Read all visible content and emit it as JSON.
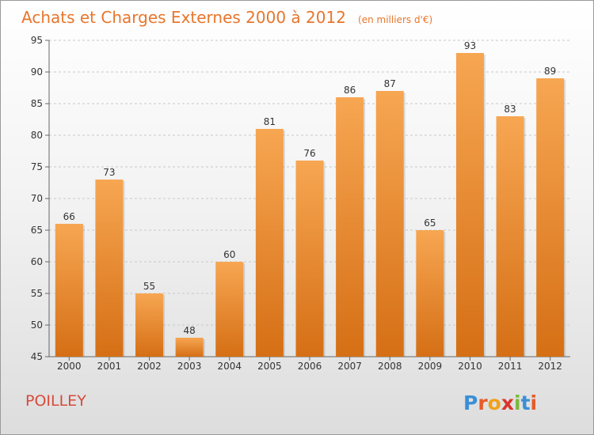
{
  "chart_data": {
    "type": "bar",
    "title": "Achats et Charges Externes 2000 à 2012",
    "subtitle": "(en milliers d'€)",
    "categories": [
      "2000",
      "2001",
      "2002",
      "2003",
      "2004",
      "2005",
      "2006",
      "2007",
      "2008",
      "2009",
      "2010",
      "2011",
      "2012"
    ],
    "values": [
      66,
      73,
      55,
      48,
      60,
      81,
      76,
      86,
      87,
      65,
      93,
      83,
      89
    ],
    "data_labels": [
      "66",
      "73",
      "55",
      "48",
      "60",
      "81",
      "76",
      "86",
      "87",
      "65",
      "93",
      "83",
      "89"
    ],
    "ylim": [
      45,
      95
    ],
    "yticks": [
      45,
      50,
      55,
      60,
      65,
      70,
      75,
      80,
      85,
      90,
      95
    ],
    "ytick_labels": [
      "45",
      "50",
      "55",
      "60",
      "65",
      "70",
      "75",
      "80",
      "85",
      "90",
      "95"
    ],
    "grid": true,
    "colors": {
      "bar_top": "#f7a652",
      "bar_bottom": "#d56f15",
      "title": "#e8762c",
      "commune": "#d84a3a"
    }
  },
  "commune": "POILLEY",
  "logo": {
    "letters": [
      "P",
      "r",
      "o",
      "x",
      "i",
      "t",
      "i"
    ],
    "colors": [
      "#3a8fd6",
      "#e65b2a",
      "#f0a21a",
      "#d8352a",
      "#7ab93c",
      "#3a8fd6",
      "#e65b2a"
    ]
  }
}
